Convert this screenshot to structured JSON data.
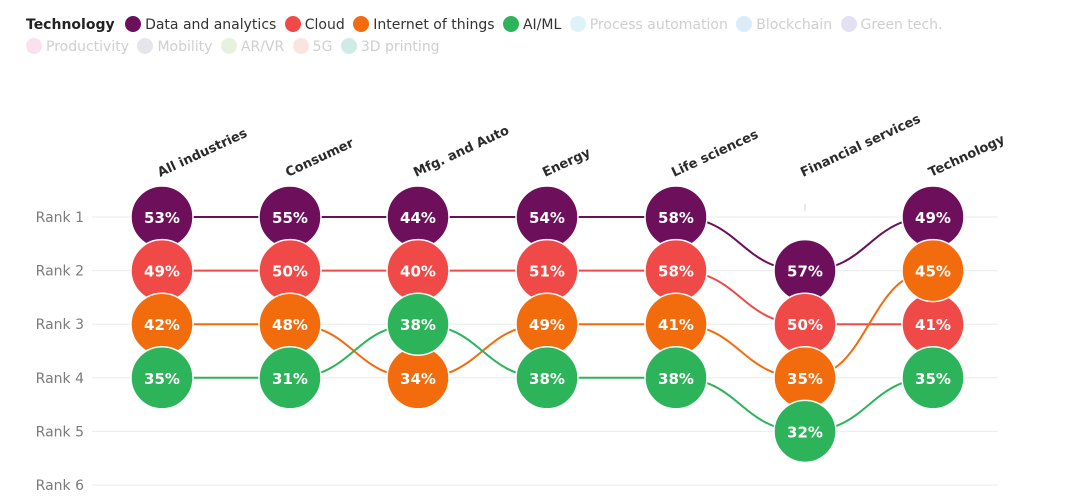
{
  "chart_data": {
    "type": "bump",
    "title": "",
    "legend_title": "Technology",
    "categories": [
      "All industries",
      "Consumer",
      "Mfg. and Auto",
      "Energy",
      "Life sciences",
      "Financial services",
      "Technology"
    ],
    "rank_labels": [
      "Rank 1",
      "Rank 2",
      "Rank 3",
      "Rank 4",
      "Rank 5",
      "Rank 6"
    ],
    "series": [
      {
        "name": "Data and analytics",
        "color": "#6d0f5a",
        "active": true,
        "ranks": [
          1,
          1,
          1,
          1,
          1,
          2,
          1
        ],
        "labels": [
          "53%",
          "55%",
          "44%",
          "54%",
          "58%",
          "57%",
          "49%"
        ]
      },
      {
        "name": "Cloud",
        "color": "#f04a48",
        "active": true,
        "ranks": [
          2,
          2,
          2,
          2,
          2,
          3,
          3
        ],
        "labels": [
          "49%",
          "50%",
          "40%",
          "51%",
          "58%",
          "50%",
          "41%"
        ]
      },
      {
        "name": "Internet of things",
        "color": "#f26c0d",
        "active": true,
        "ranks": [
          3,
          3,
          4,
          3,
          3,
          4,
          2
        ],
        "labels": [
          "42%",
          "48%",
          "34%",
          "49%",
          "41%",
          "35%",
          "45%"
        ]
      },
      {
        "name": "AI/ML",
        "color": "#2db45b",
        "active": true,
        "ranks": [
          4,
          4,
          3,
          4,
          4,
          5,
          4
        ],
        "labels": [
          "35%",
          "31%",
          "38%",
          "38%",
          "38%",
          "32%",
          "35%"
        ]
      },
      {
        "name": "Process automation",
        "color": "#87d4e3",
        "active": false
      },
      {
        "name": "Blockchain",
        "color": "#7ab6ea",
        "active": false
      },
      {
        "name": "Green tech.",
        "color": "#9a8fd3",
        "active": false
      },
      {
        "name": "Productivity",
        "color": "#f08ec0",
        "active": false
      },
      {
        "name": "Mobility",
        "color": "#a7a7b4",
        "active": false
      },
      {
        "name": "AR/VR",
        "color": "#a9cf8a",
        "active": false
      },
      {
        "name": "5G",
        "color": "#f29a8d",
        "active": false
      },
      {
        "name": "3D printing",
        "color": "#54b7a4",
        "active": false
      }
    ]
  }
}
